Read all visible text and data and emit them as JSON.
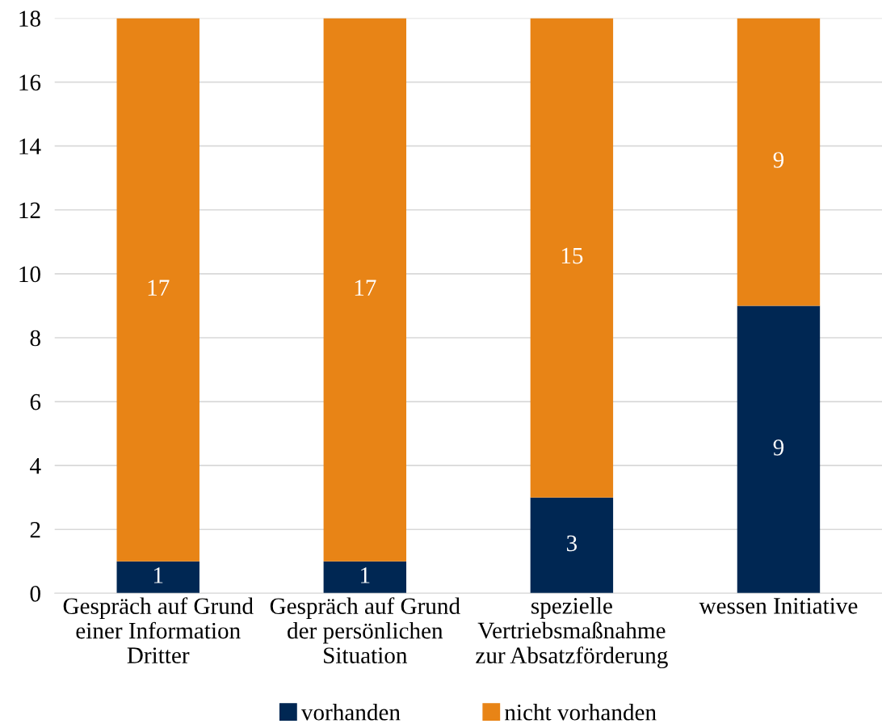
{
  "chart_data": {
    "type": "bar",
    "stacked": true,
    "categories": [
      "Gespräch auf Grund\neiner Information\nDritter",
      "Gespräch auf Grund\nder persönlichen\nSituation",
      "spezielle\nVertriebsmaßnahme\nzur Absatzförderung",
      "wessen Initiative"
    ],
    "series": [
      {
        "name": "vorhanden",
        "color": "#002753",
        "values": [
          1,
          1,
          3,
          9
        ]
      },
      {
        "name": "nicht vorhanden",
        "color": "#e88416",
        "values": [
          17,
          17,
          15,
          9
        ]
      }
    ],
    "ylim": [
      0,
      18
    ],
    "yticks": [
      0,
      2,
      4,
      6,
      8,
      10,
      12,
      14,
      16,
      18
    ],
    "grid": "y",
    "legend": "bottom",
    "data_labels": true
  }
}
